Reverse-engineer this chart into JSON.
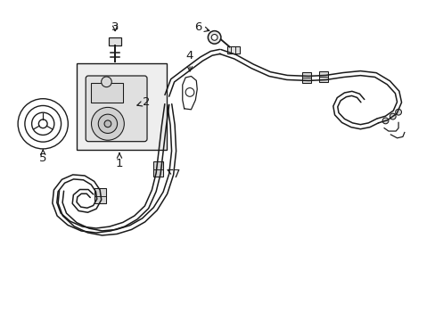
{
  "bg_color": "#ffffff",
  "line_color": "#1a1a1a",
  "figsize": [
    4.89,
    3.6
  ],
  "dpi": 100,
  "xlim": [
    0,
    10
  ],
  "ylim": [
    0,
    7.4
  ]
}
